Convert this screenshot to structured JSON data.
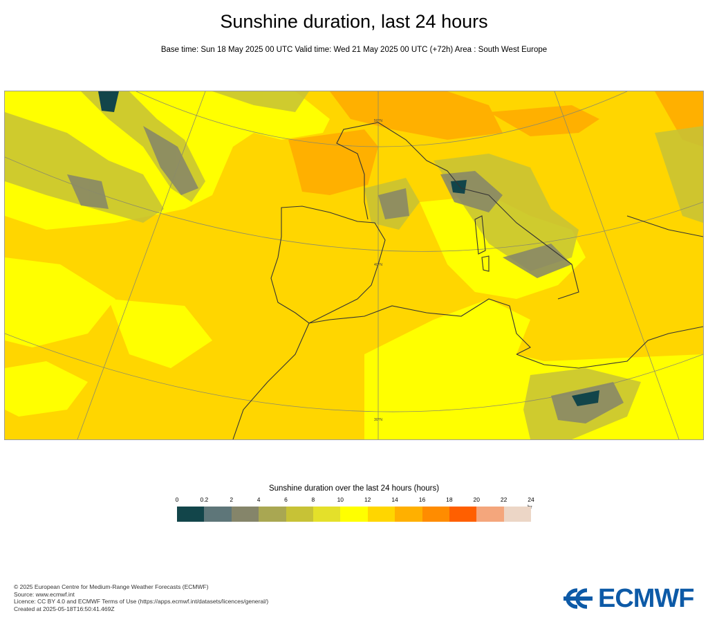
{
  "title": "Sunshine duration, last 24 hours",
  "subtitle": "Base time: Sun 18 May 2025 00 UTC Valid time: Wed 21 May 2025 00 UTC (+72h) Area : South West Europe",
  "map": {
    "parallel_labels": [
      "50°N",
      "40°N",
      "30°N"
    ],
    "legend": {
      "title": "Sunshine duration over the last 24 hours (hours)",
      "unit": "hr",
      "ticks": [
        "0",
        "0.2",
        "2",
        "4",
        "6",
        "8",
        "10",
        "12",
        "14",
        "16",
        "18",
        "20",
        "22",
        "24"
      ],
      "colors": [
        "#12454a",
        "#5e7679",
        "#85856a",
        "#a9a752",
        "#c7c236",
        "#e4e02a",
        "#ffff00",
        "#ffd600",
        "#ffb000",
        "#ff8c00",
        "#ff5f00",
        "#f4a67c",
        "#ecd6c6"
      ]
    }
  },
  "footer": {
    "line1": "© 2025 European Centre for Medium-Range Weather Forecasts (ECMWF)",
    "line2": "Source: www.ecmwf.int",
    "line3": "Licence: CC BY 4.0 and ECMWF Terms of Use (https://apps.ecmwf.int/datasets/licences/general/)",
    "line4": "Created at 2025-05-18T16:50:41.469Z"
  },
  "logo": {
    "text": "ECMWF",
    "color": "#0d5aa7"
  }
}
